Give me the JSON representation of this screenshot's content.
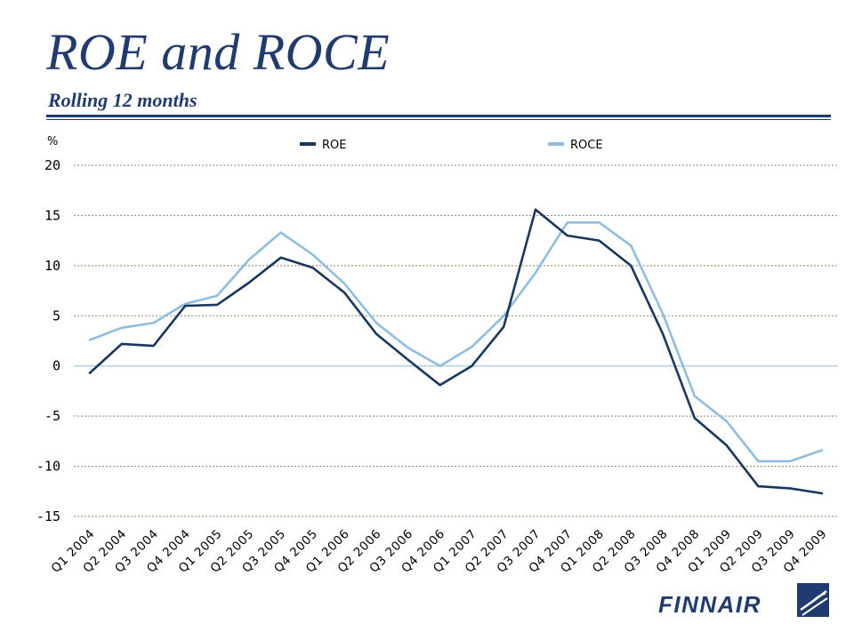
{
  "slide": {
    "title": "ROE and ROCE",
    "subtitle": "Rolling 12 months"
  },
  "logo": {
    "text": "FINNAIR",
    "icon": "finnair-f-icon"
  },
  "colors": {
    "title": "#1f3b70",
    "roe": "#17375e",
    "roce": "#8fbde0",
    "gridline": "#8c8c5a",
    "zero_line": "#8fbde0"
  },
  "chart_data": {
    "type": "line",
    "title": "",
    "unit_label": "%",
    "xlabel": "",
    "ylabel": "",
    "ylim": [
      -15,
      20
    ],
    "yticks": [
      20,
      15,
      10,
      5,
      0,
      -5,
      -10,
      -15
    ],
    "grid": true,
    "legend_position": "top",
    "categories": [
      "Q1 2004",
      "Q2 2004",
      "Q3 2004",
      "Q4 2004",
      "Q1 2005",
      "Q2 2005",
      "Q3 2005",
      "Q4 2005",
      "Q1 2006",
      "Q2 2006",
      "Q3 2006",
      "Q4 2006",
      "Q1 2007",
      "Q2 2007",
      "Q3 2007",
      "Q4 2007",
      "Q1 2008",
      "Q2 2008",
      "Q3 2008",
      "Q4 2008",
      "Q1 2009",
      "Q2 2009",
      "Q3 2009",
      "Q4 2009"
    ],
    "series": [
      {
        "name": "ROE",
        "color": "#17375e",
        "values": [
          -0.7,
          2.2,
          2.0,
          6.0,
          6.1,
          8.3,
          10.8,
          9.8,
          7.3,
          3.2,
          0.6,
          -1.9,
          0.0,
          3.9,
          15.6,
          13.0,
          12.5,
          10.0,
          3.2,
          -5.2,
          -7.9,
          -12.0,
          -12.2,
          -12.7
        ]
      },
      {
        "name": "ROCE",
        "color": "#8fbde0",
        "values": [
          2.6,
          3.8,
          4.3,
          6.2,
          7.0,
          10.6,
          13.3,
          11.1,
          8.2,
          4.3,
          1.8,
          0.0,
          1.9,
          5.0,
          9.3,
          14.3,
          14.3,
          12.0,
          5.2,
          -3.0,
          -5.5,
          -9.5,
          -9.5,
          -8.4
        ]
      }
    ]
  }
}
